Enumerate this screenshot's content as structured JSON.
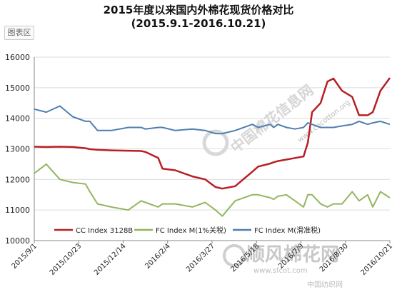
{
  "chart_data": {
    "type": "line",
    "title": "2015年度以来国内外棉花现货价格对比",
    "subtitle": "(2015.9.1-2016.10.21)",
    "xlabel": "",
    "ylabel": "",
    "ylim": [
      10000,
      16000
    ],
    "yticks": [
      10000,
      11000,
      12000,
      13000,
      14000,
      15000,
      16000
    ],
    "x_tick_labels": [
      "2015/9/1",
      "2015/10/23",
      "2015/12/14",
      "2016/2/4",
      "2016/3/27",
      "2016/5/18",
      "2016/7/9",
      "2016/8/30",
      "2016/10/21"
    ],
    "grid": true,
    "legend_position": "bottom",
    "x_positions": [
      0,
      14,
      30,
      45,
      60,
      65,
      74,
      90,
      110,
      125,
      130,
      145,
      150,
      165,
      185,
      200,
      212,
      220,
      235,
      255,
      262,
      276,
      280,
      285,
      295,
      305,
      315,
      320,
      325,
      335,
      343,
      350,
      360,
      372,
      380,
      390,
      396,
      405,
      416
    ],
    "series": [
      {
        "name": "CC Index 3128B",
        "color": "#b81f24",
        "values": [
          13070,
          13060,
          13070,
          13060,
          13020,
          12990,
          12970,
          12950,
          12940,
          12930,
          12900,
          12700,
          12350,
          12300,
          12100,
          12000,
          11750,
          11700,
          11780,
          12250,
          12420,
          12520,
          12560,
          12600,
          12650,
          12700,
          12750,
          13200,
          14200,
          14500,
          15200,
          15300,
          14900,
          14700,
          14100,
          14100,
          14200,
          14900,
          15320
        ]
      },
      {
        "name": "FC Index M(1%关税)",
        "color": "#93b65f",
        "values": [
          12200,
          12500,
          12000,
          11900,
          11850,
          11600,
          11200,
          11100,
          11000,
          11300,
          11250,
          11100,
          11200,
          11200,
          11100,
          11250,
          11000,
          10800,
          11300,
          11500,
          11500,
          11400,
          11350,
          11450,
          11500,
          11300,
          11100,
          11500,
          11500,
          11200,
          11100,
          11200,
          11200,
          11600,
          11300,
          11500,
          11100,
          11600,
          11400
        ]
      },
      {
        "name": "FC Index M(滑准税)",
        "color": "#4f7eb2",
        "values": [
          14300,
          14200,
          14400,
          14050,
          13900,
          13900,
          13600,
          13600,
          13700,
          13700,
          13650,
          13700,
          13700,
          13600,
          13650,
          13600,
          13500,
          13500,
          13600,
          13800,
          13700,
          13800,
          13700,
          13800,
          13700,
          13650,
          13700,
          13850,
          13800,
          13700,
          13700,
          13700,
          13750,
          13800,
          13900,
          13800,
          13850,
          13900,
          13800
        ]
      }
    ]
  },
  "toolbar": {
    "area_button": "图表区"
  },
  "watermarks": {
    "diag_1": "中国棉花信息网",
    "diag_2": "www.cncotton.org",
    "brand_cn": "顺风棉花网",
    "brand_url": "www.sfcot.com",
    "brand_bottom": "中国纺织网"
  }
}
